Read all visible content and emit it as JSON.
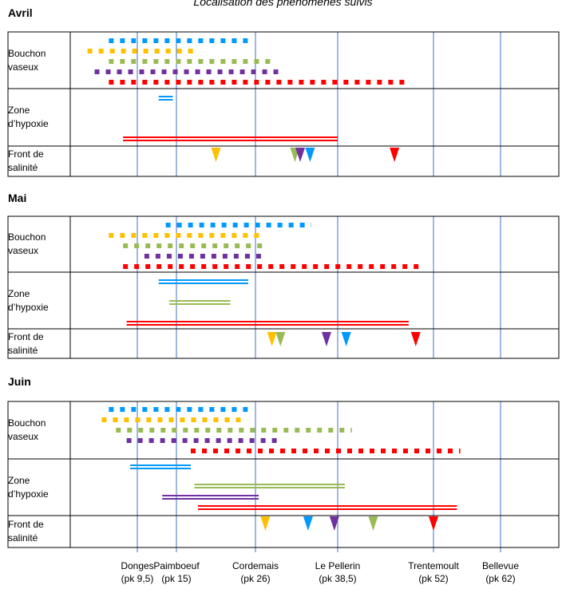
{
  "title": "Localisation des phénomènes suivis",
  "colors": {
    "blue": "#0099ff",
    "yellow": "#ffc000",
    "green": "#99bb55",
    "purple": "#7030a0",
    "red": "#ff0000",
    "axis_line": "#4472c4"
  },
  "chart_data": {
    "type": "timeline",
    "x_unit": "pk",
    "reference_points": [
      {
        "name": "Donges",
        "pk_label": "(pk 9,5)",
        "pk": 9.5
      },
      {
        "name": "Paimboeuf",
        "pk_label": "(pk 15)",
        "pk": 15
      },
      {
        "name": "Cordemais",
        "pk_label": "(pk 26)",
        "pk": 26
      },
      {
        "name": "Le Pellerin",
        "pk_label": "(pk 38,5)",
        "pk": 38.5
      },
      {
        "name": "Trentemoult",
        "pk_label": "(pk 52)",
        "pk": 52
      },
      {
        "name": "Bellevue",
        "pk_label": "(pk 62)",
        "pk": 62
      }
    ],
    "row_labels": {
      "bouchon": [
        "Bouchon",
        "vaseux"
      ],
      "hypoxie": [
        "Zone",
        "d’hypoxie"
      ],
      "salinite": [
        "Front de",
        "salinité"
      ]
    },
    "months": [
      {
        "name": "Avril",
        "bouchon_vaseux": [
          {
            "color": "blue",
            "start": 5.5,
            "end": 25.5
          },
          {
            "color": "yellow",
            "start": 2.5,
            "end": 17.5
          },
          {
            "color": "green",
            "start": 5.5,
            "end": 28.5
          },
          {
            "color": "purple",
            "start": 3.5,
            "end": 30.0
          },
          {
            "color": "red",
            "start": 5.5,
            "end": 48.5
          }
        ],
        "zone_hypoxie": [
          {
            "color": "blue",
            "start": 12.5,
            "end": 14.5
          },
          {
            "color": "red",
            "start": 7.5,
            "end": 38.5
          }
        ],
        "front_salinite": [
          {
            "color": "yellow",
            "pk": 20.5
          },
          {
            "color": "green",
            "pk": 32.0
          },
          {
            "color": "purple",
            "pk": 32.8
          },
          {
            "color": "blue",
            "pk": 34.3
          },
          {
            "color": "red",
            "pk": 46.5
          }
        ]
      },
      {
        "name": "Mai",
        "bouchon_vaseux": [
          {
            "color": "blue",
            "start": 13.5,
            "end": 34.5
          },
          {
            "color": "yellow",
            "start": 5.5,
            "end": 27.0
          },
          {
            "color": "green",
            "start": 7.5,
            "end": 27.5
          },
          {
            "color": "purple",
            "start": 10.5,
            "end": 27.5
          },
          {
            "color": "red",
            "start": 7.5,
            "end": 50.5
          }
        ],
        "zone_hypoxie": [
          {
            "color": "blue",
            "start": 12.5,
            "end": 25.0
          },
          {
            "color": "green",
            "start": 14.0,
            "end": 22.5
          },
          {
            "color": "red",
            "start": 8.0,
            "end": 48.5
          }
        ],
        "front_salinite": [
          {
            "color": "yellow",
            "pk": 28.5
          },
          {
            "color": "green",
            "pk": 29.8
          },
          {
            "color": "purple",
            "pk": 36.8
          },
          {
            "color": "blue",
            "pk": 39.7
          },
          {
            "color": "red",
            "pk": 49.5
          }
        ]
      },
      {
        "name": "Juin",
        "bouchon_vaseux": [
          {
            "color": "blue",
            "start": 5.5,
            "end": 25.5
          },
          {
            "color": "yellow",
            "start": 4.5,
            "end": 24.5
          },
          {
            "color": "green",
            "start": 6.5,
            "end": 40.5
          },
          {
            "color": "purple",
            "start": 8.0,
            "end": 29.5
          },
          {
            "color": "red",
            "start": 17.0,
            "end": 56.0
          }
        ],
        "zone_hypoxie": [
          {
            "color": "blue",
            "start": 8.5,
            "end": 17.0
          },
          {
            "color": "green",
            "start": 17.5,
            "end": 39.5
          },
          {
            "color": "purple",
            "start": 13.0,
            "end": 26.5
          },
          {
            "color": "red",
            "start": 18.0,
            "end": 55.5
          }
        ],
        "front_salinite": [
          {
            "color": "yellow",
            "pk": 27.5
          },
          {
            "color": "blue",
            "pk": 34.0
          },
          {
            "color": "purple",
            "pk": 38.0
          },
          {
            "color": "green",
            "pk": 43.5
          },
          {
            "color": "red",
            "pk": 52.0
          }
        ]
      }
    ]
  }
}
